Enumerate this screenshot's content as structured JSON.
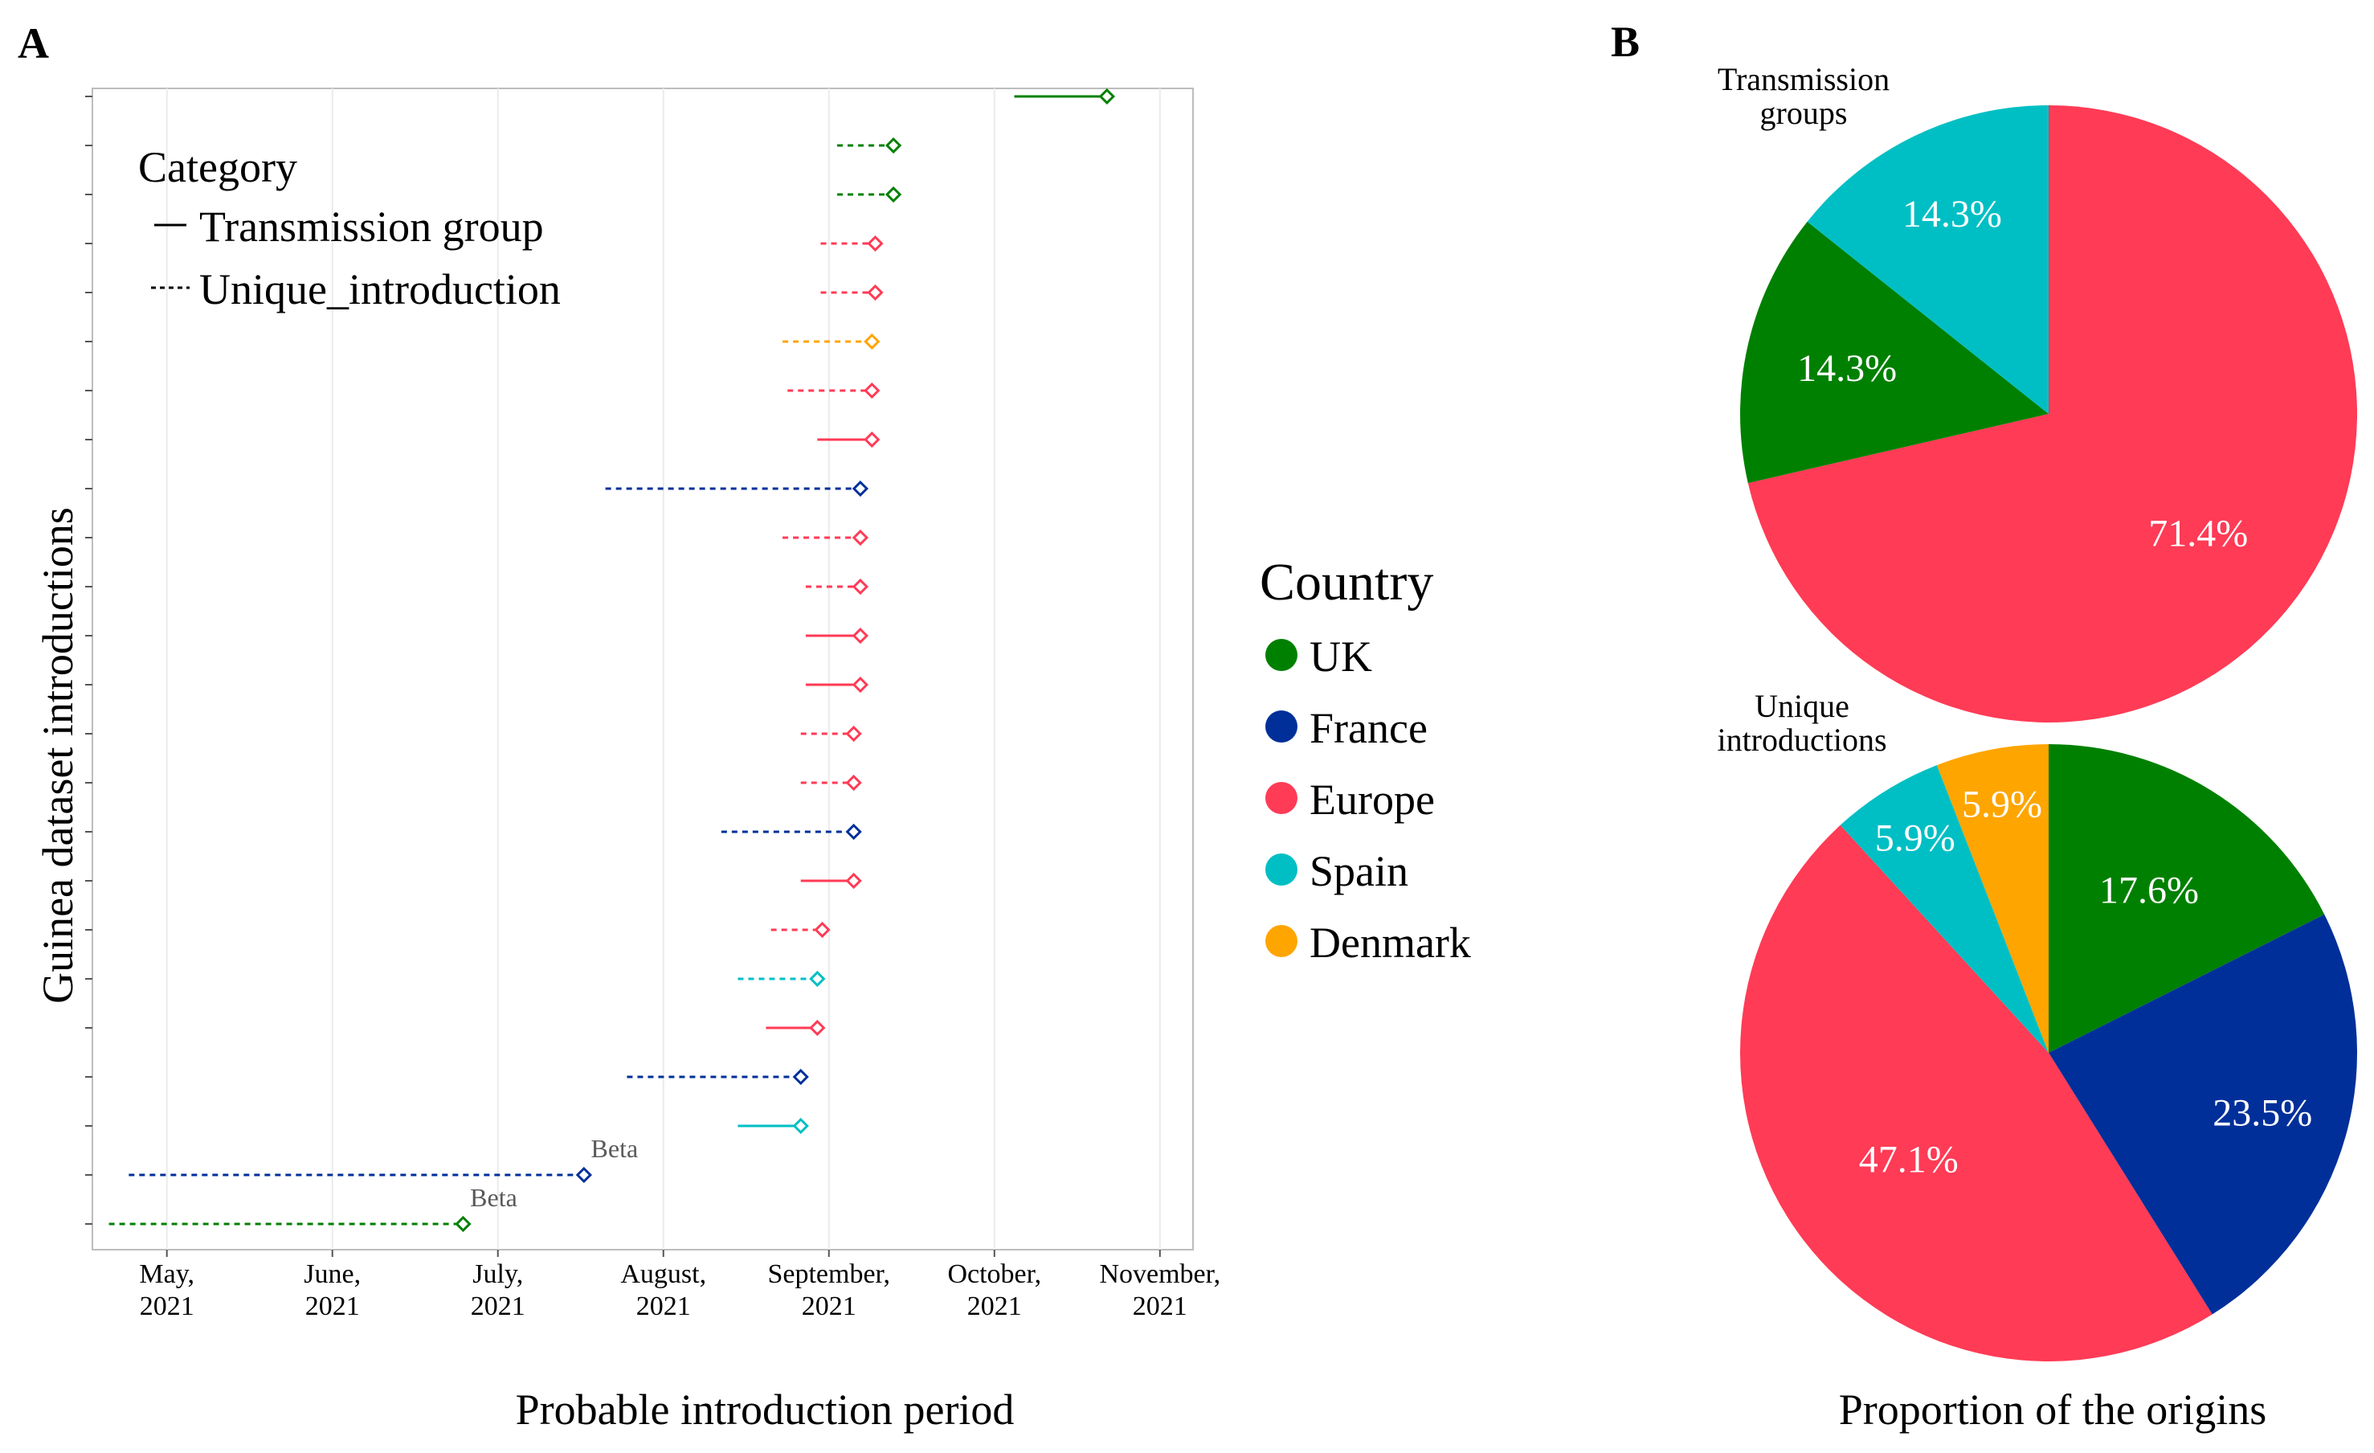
{
  "panel_a": {
    "label": "A",
    "legend_category": {
      "title": "Category",
      "items": [
        {
          "label": "Transmission group",
          "style": "solid"
        },
        {
          "label": "Unique_introduction",
          "style": "dashed"
        }
      ]
    }
  },
  "panel_b": {
    "label": "B"
  },
  "legend_country": {
    "title": "Country",
    "items": [
      {
        "label": "UK",
        "color": "#008000"
      },
      {
        "label": "France",
        "color": "#002f9a"
      },
      {
        "label": "Europe",
        "color": "#ff3b56"
      },
      {
        "label": "Spain",
        "color": "#00bfc4"
      },
      {
        "label": "Denmark",
        "color": "#ffa500"
      }
    ]
  },
  "chart_data": [
    {
      "type": "line",
      "subtype": "interval-dumbbell",
      "title": "",
      "xlabel": "Probable introduction period",
      "ylabel": "Guinea dataset introductions",
      "x_unit": "months since 2021-04-01",
      "xlim": [
        0.55,
        7.2
      ],
      "x_ticks": [
        {
          "value": 1,
          "label": [
            "May,",
            "2021"
          ]
        },
        {
          "value": 2,
          "label": [
            "June,",
            "2021"
          ]
        },
        {
          "value": 3,
          "label": [
            "July,",
            "2021"
          ]
        },
        {
          "value": 4,
          "label": [
            "August,",
            "2021"
          ]
        },
        {
          "value": 5,
          "label": [
            "September,",
            "2021"
          ]
        },
        {
          "value": 6,
          "label": [
            "October,",
            "2021"
          ]
        },
        {
          "value": 7,
          "label": [
            "November,",
            "2021"
          ]
        }
      ],
      "grid": true,
      "series": [
        {
          "row": 24,
          "start": 6.12,
          "end": 6.68,
          "country": "UK",
          "category": "Transmission group"
        },
        {
          "row": 23,
          "start": 5.05,
          "end": 5.39,
          "country": "UK",
          "category": "Unique_introduction"
        },
        {
          "row": 22,
          "start": 5.05,
          "end": 5.39,
          "country": "UK",
          "category": "Unique_introduction"
        },
        {
          "row": 21,
          "start": 4.95,
          "end": 5.28,
          "country": "Europe",
          "category": "Unique_introduction"
        },
        {
          "row": 20,
          "start": 4.95,
          "end": 5.28,
          "country": "Europe",
          "category": "Unique_introduction"
        },
        {
          "row": 19,
          "start": 4.72,
          "end": 5.26,
          "country": "Denmark",
          "category": "Unique_introduction"
        },
        {
          "row": 18,
          "start": 4.75,
          "end": 5.26,
          "country": "Europe",
          "category": "Unique_introduction"
        },
        {
          "row": 17,
          "start": 4.93,
          "end": 5.26,
          "country": "Europe",
          "category": "Transmission group"
        },
        {
          "row": 16,
          "start": 3.65,
          "end": 5.19,
          "country": "France",
          "category": "Unique_introduction"
        },
        {
          "row": 15,
          "start": 4.72,
          "end": 5.19,
          "country": "Europe",
          "category": "Unique_introduction"
        },
        {
          "row": 14,
          "start": 4.86,
          "end": 5.19,
          "country": "Europe",
          "category": "Unique_introduction"
        },
        {
          "row": 13,
          "start": 4.86,
          "end": 5.19,
          "country": "Europe",
          "category": "Transmission group"
        },
        {
          "row": 12,
          "start": 4.86,
          "end": 5.19,
          "country": "Europe",
          "category": "Transmission group"
        },
        {
          "row": 11,
          "start": 4.83,
          "end": 5.15,
          "country": "Europe",
          "category": "Unique_introduction"
        },
        {
          "row": 10,
          "start": 4.83,
          "end": 5.15,
          "country": "Europe",
          "category": "Unique_introduction"
        },
        {
          "row": 9,
          "start": 4.35,
          "end": 5.15,
          "country": "France",
          "category": "Unique_introduction"
        },
        {
          "row": 8,
          "start": 4.83,
          "end": 5.15,
          "country": "Europe",
          "category": "Transmission group"
        },
        {
          "row": 7,
          "start": 4.65,
          "end": 4.96,
          "country": "Europe",
          "category": "Unique_introduction"
        },
        {
          "row": 6,
          "start": 4.45,
          "end": 4.93,
          "country": "Spain",
          "category": "Unique_introduction"
        },
        {
          "row": 5,
          "start": 4.62,
          "end": 4.93,
          "country": "Europe",
          "category": "Transmission group"
        },
        {
          "row": 4,
          "start": 3.78,
          "end": 4.83,
          "country": "France",
          "category": "Unique_introduction"
        },
        {
          "row": 3,
          "start": 4.45,
          "end": 4.83,
          "country": "Spain",
          "category": "Transmission group"
        },
        {
          "row": 2,
          "start": 0.77,
          "end": 3.52,
          "country": "France",
          "category": "Unique_introduction",
          "annotation": "Beta"
        },
        {
          "row": 1,
          "start": 0.65,
          "end": 2.79,
          "country": "UK",
          "category": "Unique_introduction",
          "annotation": "Beta"
        }
      ]
    },
    {
      "type": "pie",
      "title": "Transmission groups",
      "title_lines": [
        "Transmission",
        "groups"
      ],
      "slices": [
        {
          "label": "Europe",
          "value": 71.4,
          "text": "71.4%"
        },
        {
          "label": "UK",
          "value": 14.3,
          "text": "14.3%"
        },
        {
          "label": "Spain",
          "value": 14.3,
          "text": "14.3%"
        }
      ]
    },
    {
      "type": "pie",
      "title": "Unique introductions",
      "title_lines": [
        "Unique",
        "introductions"
      ],
      "xlabel": "Proportion of the origins",
      "slices": [
        {
          "label": "UK",
          "value": 17.6,
          "text": "17.6%"
        },
        {
          "label": "France",
          "value": 23.5,
          "text": "23.5%"
        },
        {
          "label": "Europe",
          "value": 47.1,
          "text": "47.1%"
        },
        {
          "label": "Spain",
          "value": 5.9,
          "text": "5.9%"
        },
        {
          "label": "Denmark",
          "value": 5.9,
          "text": "5.9%"
        }
      ]
    }
  ]
}
